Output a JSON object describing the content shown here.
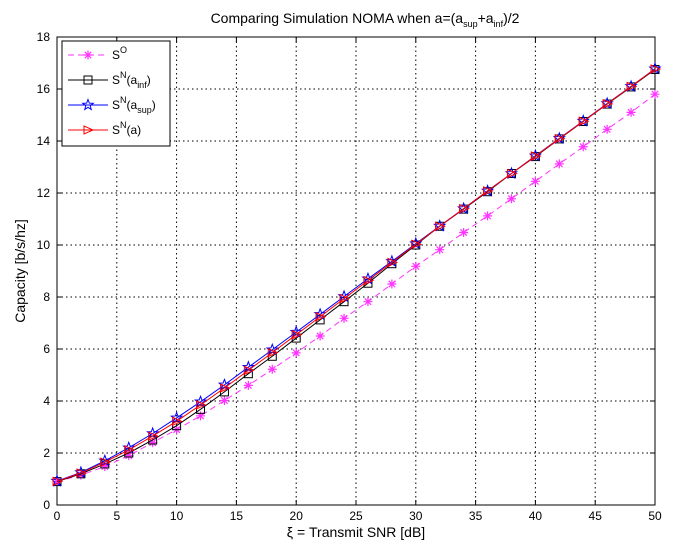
{
  "chart_data": {
    "type": "line",
    "title": {
      "prefix": "Comparing Simulation NOMA when a=(a",
      "sub1": "sup",
      "mid": "+a",
      "sub2": "inf",
      "suffix": ")/2"
    },
    "xlabel": "ξ = Transmit SNR [dB]",
    "ylabel": "Capacity [b/s/hz]",
    "xlim": [
      0,
      50
    ],
    "ylim": [
      0,
      18
    ],
    "xticks": [
      "0",
      "5",
      "10",
      "15",
      "20",
      "25",
      "30",
      "35",
      "40",
      "45",
      "50"
    ],
    "yticks": [
      "0",
      "2",
      "4",
      "6",
      "8",
      "10",
      "12",
      "14",
      "16",
      "18"
    ],
    "grid": true,
    "legend_position": "top-left",
    "x": [
      0,
      2,
      4,
      6,
      8,
      10,
      12,
      14,
      16,
      18,
      20,
      22,
      24,
      26,
      28,
      30,
      32,
      34,
      36,
      38,
      40,
      42,
      44,
      46,
      48,
      50
    ],
    "series": [
      {
        "name": "S^O",
        "legend": {
          "base": "S",
          "sup": "O",
          "rest": ""
        },
        "color": "#ff33ff",
        "line": "dashed",
        "marker": "asterisk",
        "values": [
          0.9,
          1.15,
          1.48,
          1.9,
          2.4,
          2.9,
          3.43,
          4.02,
          4.6,
          5.22,
          5.85,
          6.5,
          7.18,
          7.82,
          8.5,
          9.18,
          9.82,
          10.48,
          11.12,
          11.78,
          12.45,
          13.12,
          13.78,
          14.45,
          15.1,
          15.8
        ]
      },
      {
        "name": "S^N(a_inf)",
        "legend": {
          "base": "S",
          "sup": "N",
          "rest": "(a",
          "sub": "inf",
          "end": ")"
        },
        "color": "#000000",
        "line": "solid",
        "marker": "square",
        "values": [
          0.9,
          1.2,
          1.58,
          2.0,
          2.5,
          3.05,
          3.68,
          4.35,
          5.05,
          5.72,
          6.42,
          7.12,
          7.82,
          8.53,
          9.28,
          10.0,
          10.72,
          11.38,
          12.05,
          12.75,
          13.4,
          14.08,
          14.75,
          15.42,
          16.08,
          16.75
        ]
      },
      {
        "name": "S^N(a_sup)",
        "legend": {
          "base": "S",
          "sup": "N",
          "rest": "(a",
          "sub": "sup",
          "end": ")"
        },
        "color": "#0000ff",
        "line": "solid",
        "marker": "star",
        "values": [
          0.92,
          1.25,
          1.7,
          2.2,
          2.75,
          3.35,
          3.97,
          4.62,
          5.3,
          5.97,
          6.65,
          7.33,
          8.02,
          8.7,
          9.37,
          10.05,
          10.73,
          11.4,
          12.08,
          12.75,
          13.43,
          14.1,
          14.77,
          15.44,
          16.1,
          16.78
        ]
      },
      {
        "name": "S^N(a)",
        "legend": {
          "base": "S",
          "sup": "N",
          "rest": "(a)",
          "sub": "",
          "end": ""
        },
        "color": "#ff0000",
        "line": "solid",
        "marker": "triangle-right",
        "values": [
          0.91,
          1.23,
          1.65,
          2.12,
          2.65,
          3.22,
          3.85,
          4.5,
          5.18,
          5.86,
          6.55,
          7.24,
          7.94,
          8.63,
          9.33,
          10.03,
          10.72,
          11.4,
          12.08,
          12.75,
          13.42,
          14.09,
          14.76,
          15.43,
          16.1,
          16.77
        ]
      }
    ]
  }
}
